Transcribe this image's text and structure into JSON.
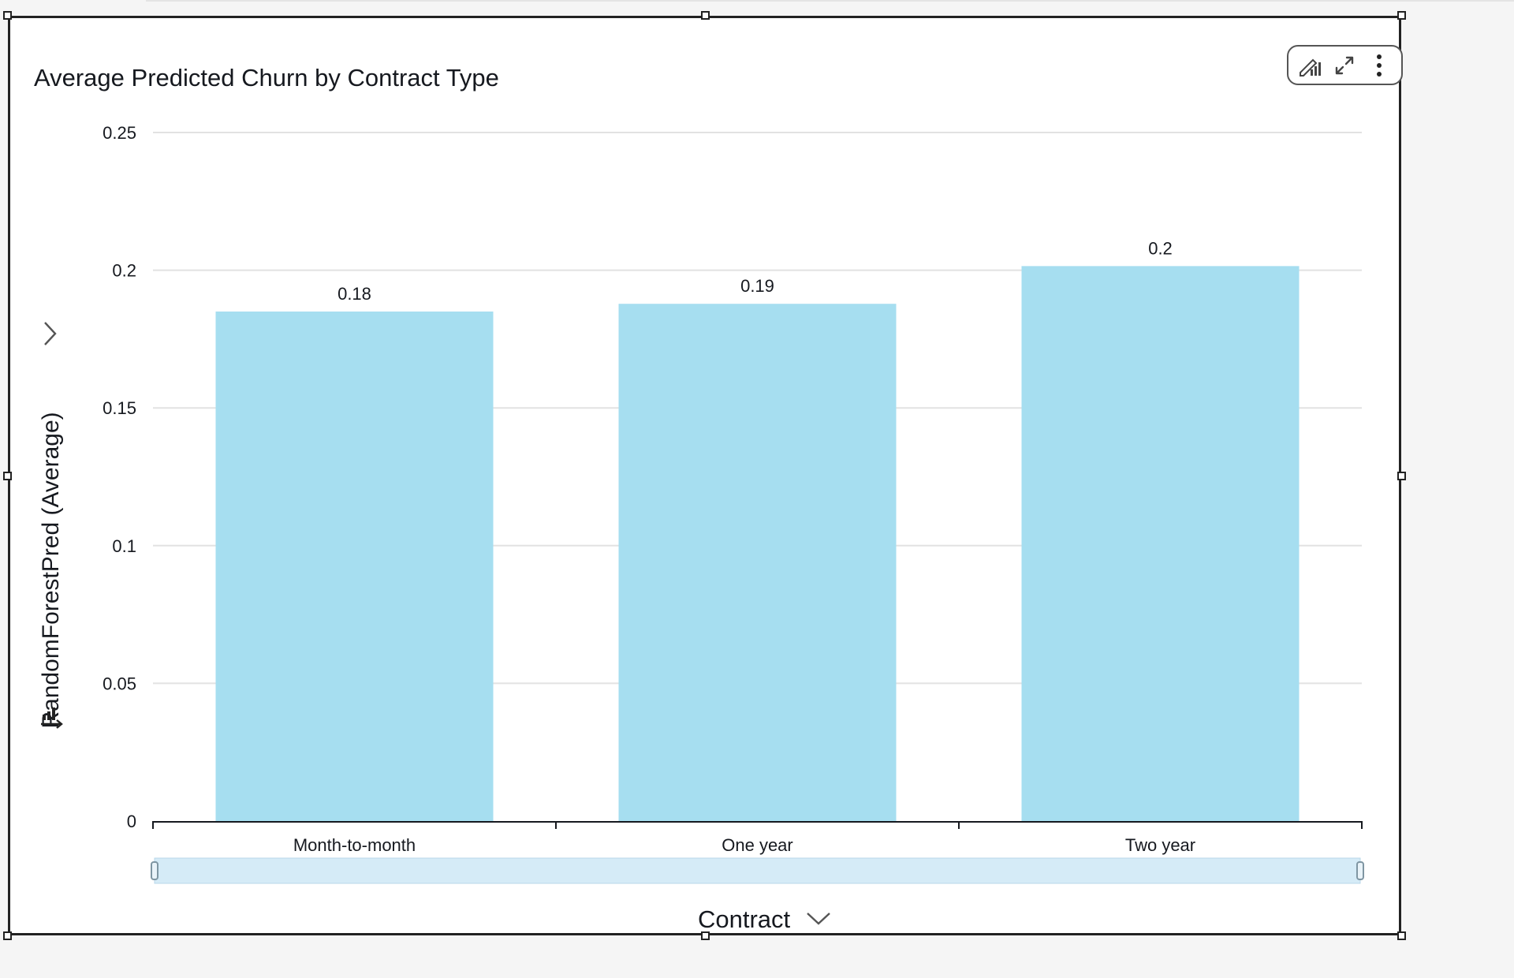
{
  "visual": {
    "title": "Average Predicted Churn by Contract Type",
    "toolbar": {
      "icons": [
        "edit-chart-icon",
        "expand-icon",
        "more-options-icon"
      ]
    }
  },
  "chart_data": {
    "type": "bar",
    "title": "Average Predicted Churn by Contract Type",
    "categories": [
      "Month-to-month",
      "One year",
      "Two year"
    ],
    "values": [
      0.185,
      0.1878,
      0.2015
    ],
    "data_labels": [
      "0.18",
      "0.19",
      "0.2"
    ],
    "xlabel": "Contract",
    "ylabel": "RandomForestPred (Average)",
    "ylim": [
      0,
      0.25
    ],
    "yticks": [
      0,
      0.05,
      0.1,
      0.15,
      0.2,
      0.25
    ],
    "ytick_labels": [
      "0",
      "0.05",
      "0.1",
      "0.15",
      "0.2",
      "0.25"
    ],
    "grid": true,
    "bar_color": "#a6def0"
  }
}
